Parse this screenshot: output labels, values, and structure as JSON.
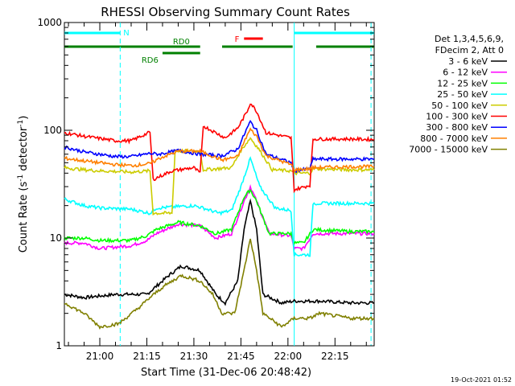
{
  "chart_data": {
    "type": "line",
    "title": "RHESSI Observing Summary Count Rates",
    "xlabel": "Start Time (31-Dec-06 20:48:42)",
    "ylabel_main": "Count Rate (s",
    "ylabel_sup1": "-1",
    "ylabel_mid": " detector",
    "ylabel_sup2": "-1",
    "ylabel_end": ")",
    "yscale": "log",
    "ylim": [
      1,
      1000
    ],
    "xlim_min": [
      48.7,
      147.5
    ],
    "x_unit": "minutes after 20:00",
    "x_ticks": [
      {
        "label": "21:00",
        "v": 60
      },
      {
        "label": "21:15",
        "v": 75
      },
      {
        "label": "21:30",
        "v": 90
      },
      {
        "label": "21:45",
        "v": 105
      },
      {
        "label": "22:00",
        "v": 120
      },
      {
        "label": "22:15",
        "v": 135
      }
    ],
    "y_ticks": [
      {
        "label": "1",
        "v": 1
      },
      {
        "label": "10",
        "v": 10
      },
      {
        "label": "100",
        "v": 100
      },
      {
        "label": "1000",
        "v": 1000
      }
    ],
    "legend_header": [
      "Det 1,3,4,5,6,9,",
      "FDecim 2, Att 0"
    ],
    "legend_placement": "right",
    "footer_date": "19-Oct-2021 01:52",
    "flags": {
      "N": {
        "label": "N",
        "color": "#00ffff",
        "segments": [
          [
            48.7,
            66.5
          ],
          [
            122,
            147.5
          ]
        ]
      },
      "RD0": {
        "label": "RD0",
        "color": "#008000",
        "segments": [
          [
            48.7,
            92
          ],
          [
            99,
            121.5
          ],
          [
            129,
            147.5
          ]
        ]
      },
      "RD6": {
        "label": "RD6",
        "color": "#008000",
        "segments": [
          [
            80,
            92
          ]
        ]
      },
      "F": {
        "label": "F",
        "color": "#ff0000",
        "segments": [
          [
            106,
            112
          ]
        ]
      }
    },
    "eclipse_lines": [
      66.5,
      146.5
    ],
    "night_edges": [
      122
    ],
    "series": [
      {
        "name": "3 - 6 keV",
        "color": "#000000",
        "points": [
          [
            48.7,
            3
          ],
          [
            55,
            2.8
          ],
          [
            65,
            3
          ],
          [
            70,
            3
          ],
          [
            75,
            3
          ],
          [
            82,
            4.5
          ],
          [
            86,
            5.5
          ],
          [
            92,
            5
          ],
          [
            97,
            3
          ],
          [
            100,
            2.5
          ],
          [
            104,
            4
          ],
          [
            106,
            12
          ],
          [
            108,
            22
          ],
          [
            110,
            12
          ],
          [
            112,
            3
          ],
          [
            118,
            2.5
          ],
          [
            122,
            2.6
          ],
          [
            130,
            2.6
          ],
          [
            140,
            2.5
          ],
          [
            147.5,
            2.5
          ]
        ]
      },
      {
        "name": "6 - 12 keV",
        "color": "#ff00ff",
        "points": [
          [
            48.7,
            9
          ],
          [
            55,
            9
          ],
          [
            60,
            8
          ],
          [
            70,
            8.5
          ],
          [
            75,
            9.5
          ],
          [
            78,
            11
          ],
          [
            85,
            13.5
          ],
          [
            92,
            13
          ],
          [
            97,
            10
          ],
          [
            102,
            11
          ],
          [
            106,
            22
          ],
          [
            108,
            30
          ],
          [
            110,
            22
          ],
          [
            114,
            11
          ],
          [
            121,
            10.5
          ],
          [
            122,
            8
          ],
          [
            125,
            8
          ],
          [
            128,
            11
          ],
          [
            140,
            11
          ],
          [
            147.5,
            11
          ]
        ]
      },
      {
        "name": "12 - 25 keV",
        "color": "#00ff00",
        "points": [
          [
            48.7,
            10
          ],
          [
            55,
            10
          ],
          [
            60,
            9.5
          ],
          [
            70,
            9.5
          ],
          [
            75,
            10.5
          ],
          [
            78,
            12
          ],
          [
            85,
            14
          ],
          [
            92,
            13
          ],
          [
            97,
            11
          ],
          [
            102,
            12
          ],
          [
            106,
            24
          ],
          [
            108,
            28
          ],
          [
            110,
            22
          ],
          [
            114,
            11
          ],
          [
            121,
            11
          ],
          [
            122,
            9
          ],
          [
            125,
            9
          ],
          [
            128,
            12
          ],
          [
            140,
            11.5
          ],
          [
            147.5,
            11.5
          ]
        ]
      },
      {
        "name": "25 - 50 keV",
        "color": "#00ffff",
        "points": [
          [
            48.7,
            23
          ],
          [
            55,
            20
          ],
          [
            60,
            19
          ],
          [
            70,
            18.5
          ],
          [
            76,
            17
          ],
          [
            78,
            19
          ],
          [
            90,
            20
          ],
          [
            93,
            19
          ],
          [
            98,
            17
          ],
          [
            102,
            18
          ],
          [
            105,
            30
          ],
          [
            108,
            55
          ],
          [
            111,
            30
          ],
          [
            116,
            19
          ],
          [
            121,
            18
          ],
          [
            122,
            7
          ],
          [
            127,
            7
          ],
          [
            128,
            21
          ],
          [
            140,
            21
          ],
          [
            147.5,
            21
          ]
        ]
      },
      {
        "name": "50 - 100 keV",
        "color": "#cccc00",
        "points": [
          [
            48.7,
            45
          ],
          [
            55,
            43
          ],
          [
            60,
            42
          ],
          [
            70,
            41
          ],
          [
            76,
            42
          ],
          [
            77,
            17
          ],
          [
            83,
            17
          ],
          [
            84,
            64
          ],
          [
            92,
            64
          ],
          [
            93,
            43
          ],
          [
            102,
            45
          ],
          [
            105,
            65
          ],
          [
            108,
            85
          ],
          [
            111,
            65
          ],
          [
            115,
            43
          ],
          [
            121,
            42
          ],
          [
            122,
            40
          ],
          [
            127,
            40
          ],
          [
            128,
            44
          ],
          [
            140,
            43
          ],
          [
            147.5,
            43
          ]
        ]
      },
      {
        "name": "100 - 300 keV",
        "color": "#ff0000",
        "points": [
          [
            48.7,
            95
          ],
          [
            55,
            88
          ],
          [
            65,
            80
          ],
          [
            70,
            80
          ],
          [
            76,
            96
          ],
          [
            77,
            35
          ],
          [
            83,
            42
          ],
          [
            90,
            45
          ],
          [
            92,
            40
          ],
          [
            93,
            110
          ],
          [
            100,
            85
          ],
          [
            104,
            105
          ],
          [
            107,
            150
          ],
          [
            108,
            180
          ],
          [
            110,
            150
          ],
          [
            113,
            95
          ],
          [
            121,
            85
          ],
          [
            122,
            28
          ],
          [
            127,
            31
          ],
          [
            128,
            83
          ],
          [
            140,
            83
          ],
          [
            147.5,
            82
          ]
        ]
      },
      {
        "name": "300 - 800 keV",
        "color": "#0000ff",
        "points": [
          [
            48.7,
            70
          ],
          [
            55,
            63
          ],
          [
            65,
            57
          ],
          [
            70,
            57
          ],
          [
            76,
            61
          ],
          [
            79,
            60
          ],
          [
            85,
            65
          ],
          [
            92,
            60
          ],
          [
            99,
            58
          ],
          [
            104,
            67
          ],
          [
            107,
            105
          ],
          [
            108,
            120
          ],
          [
            110,
            100
          ],
          [
            113,
            60
          ],
          [
            121,
            50
          ],
          [
            122,
            42
          ],
          [
            127,
            44
          ],
          [
            128,
            54
          ],
          [
            140,
            54
          ],
          [
            147.5,
            54
          ]
        ]
      },
      {
        "name": "800 - 7000 keV",
        "color": "#ff8000",
        "points": [
          [
            48.7,
            55
          ],
          [
            55,
            52
          ],
          [
            65,
            48
          ],
          [
            70,
            47
          ],
          [
            76,
            49
          ],
          [
            79,
            55
          ],
          [
            85,
            64
          ],
          [
            92,
            64
          ],
          [
            99,
            53
          ],
          [
            104,
            57
          ],
          [
            107,
            90
          ],
          [
            108,
            102
          ],
          [
            110,
            88
          ],
          [
            113,
            58
          ],
          [
            121,
            48
          ],
          [
            122,
            43
          ],
          [
            127,
            44
          ],
          [
            128,
            45
          ],
          [
            140,
            46
          ],
          [
            147.5,
            46
          ]
        ]
      },
      {
        "name": "7000 - 15000 keV",
        "color": "#808000",
        "points": [
          [
            48.7,
            2.5
          ],
          [
            55,
            2
          ],
          [
            60,
            1.5
          ],
          [
            66,
            1.6
          ],
          [
            72,
            2.2
          ],
          [
            76,
            2.8
          ],
          [
            80,
            3.5
          ],
          [
            86,
            4.5
          ],
          [
            92,
            4
          ],
          [
            96,
            3
          ],
          [
            99,
            2
          ],
          [
            103,
            2
          ],
          [
            106,
            5
          ],
          [
            108,
            10
          ],
          [
            110,
            5
          ],
          [
            112,
            2
          ],
          [
            118,
            1.5
          ],
          [
            122,
            1.8
          ],
          [
            127,
            1.8
          ],
          [
            130,
            2
          ],
          [
            140,
            1.8
          ],
          [
            147.5,
            1.8
          ]
        ]
      }
    ]
  }
}
